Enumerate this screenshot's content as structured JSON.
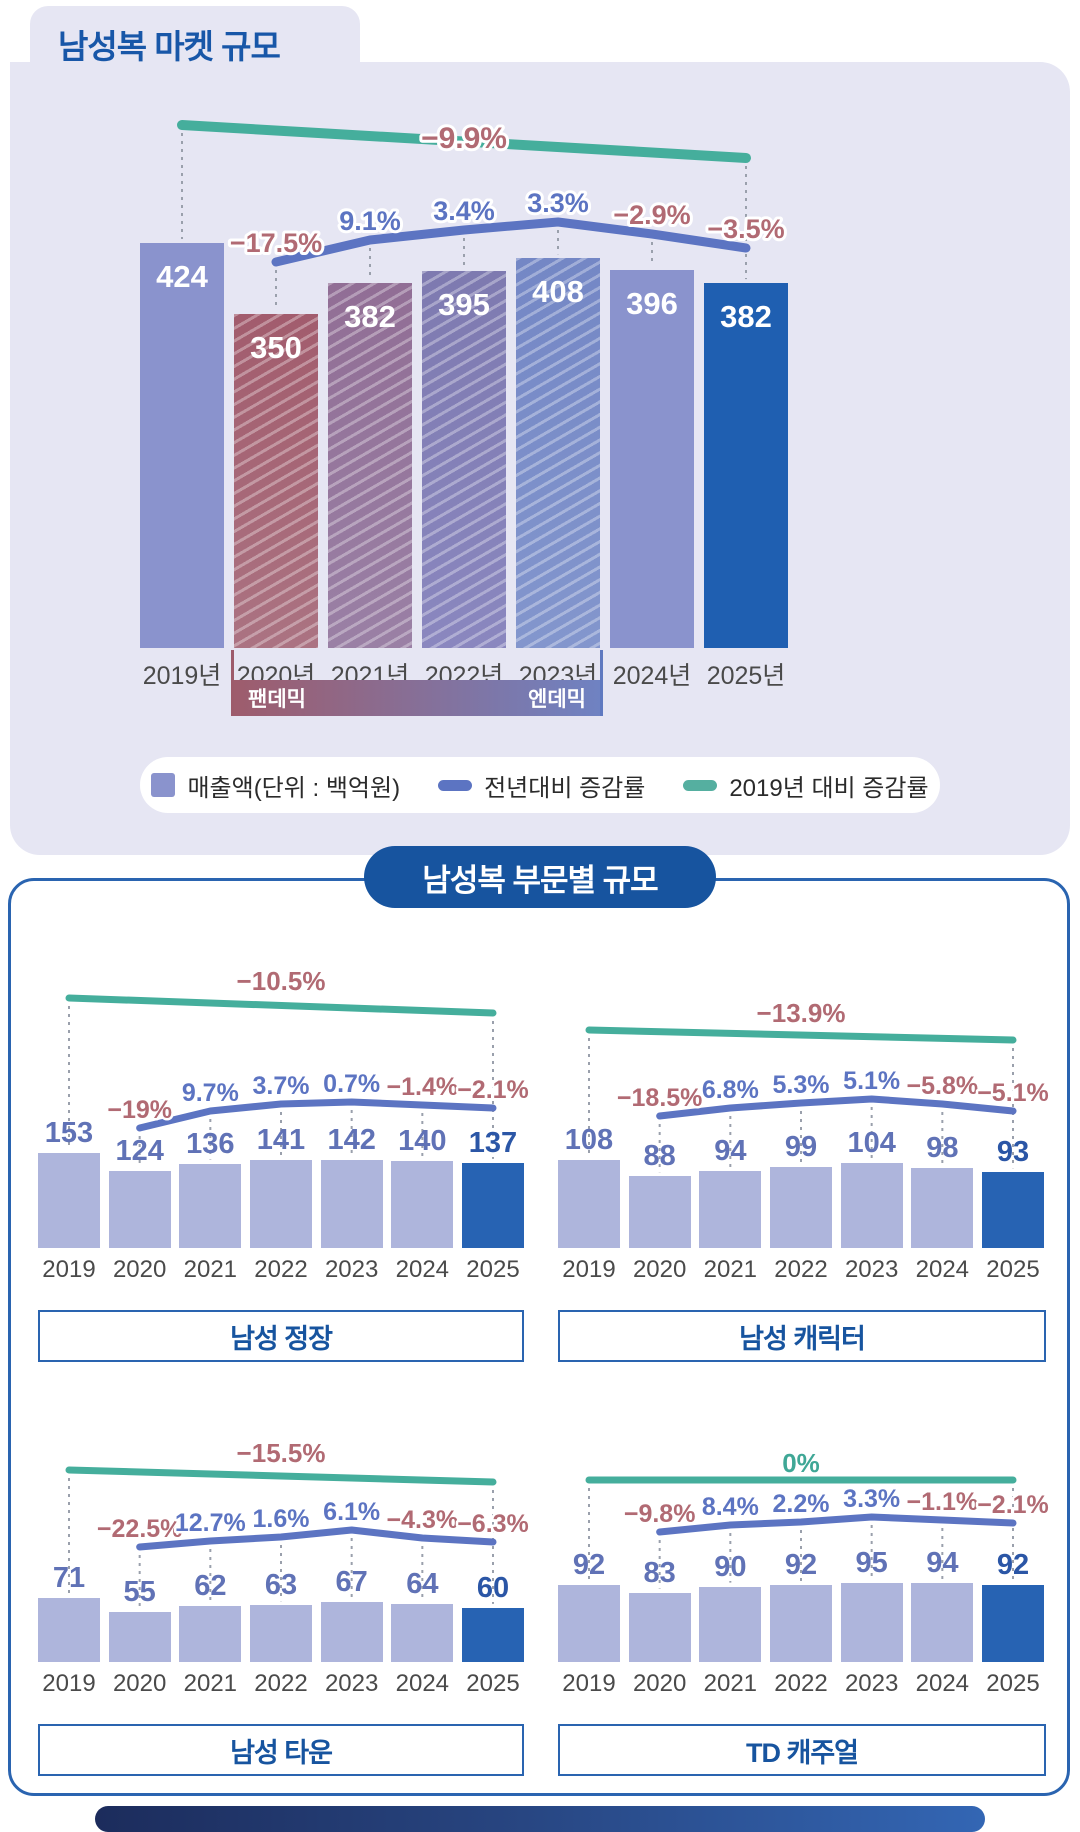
{
  "top_section": {
    "title": "남성복 마켓 규모",
    "band": {
      "left": "팬데믹",
      "right": "엔데믹"
    },
    "legend": [
      {
        "swatch": "bar-swatch",
        "color": "#8A93CD",
        "label": "매출액(단위 : 백억원)"
      },
      {
        "swatch": "yoy-line-swatch",
        "color": "#5C74C2",
        "label": "전년대비 증감률"
      },
      {
        "swatch": "vs2019-line-swatch",
        "color": "#55AFA0",
        "label": "2019년 대비 증감률"
      }
    ]
  },
  "bottom_section": {
    "title": "남성복 부문별 규모"
  },
  "chart_data": [
    {
      "id": "menswear-market-total",
      "type": "bar",
      "title": "남성복 마켓 규모",
      "unit": "백억원",
      "categories": [
        "2019년",
        "2020년",
        "2021년",
        "2022년",
        "2023년",
        "2024년",
        "2025년"
      ],
      "values": [
        424,
        350,
        382,
        395,
        408,
        396,
        382
      ],
      "yoy_pct": [
        null,
        -17.5,
        9.1,
        3.4,
        3.3,
        -2.9,
        -3.5
      ],
      "yoy_labels": [
        "−17.5%",
        "9.1%",
        "3.4%",
        "3.3%",
        "−2.9%",
        "−3.5%"
      ],
      "vs2019_pct": -9.9,
      "vs2019_label": "−9.9%",
      "annotations": [
        "팬데믹",
        "엔데믹"
      ],
      "grid": false,
      "legend_position": "bottom"
    },
    {
      "id": "men-suits",
      "type": "bar",
      "title": "남성 정장",
      "categories": [
        "2019",
        "2020",
        "2021",
        "2022",
        "2023",
        "2024",
        "2025"
      ],
      "values": [
        153,
        124,
        136,
        141,
        142,
        140,
        137
      ],
      "yoy_pct": [
        null,
        -19,
        9.7,
        3.7,
        0.7,
        -1.4,
        -2.1
      ],
      "yoy_labels": [
        "−19%",
        "9.7%",
        "3.7%",
        "0.7%",
        "−1.4%",
        "−2.1%"
      ],
      "vs2019_pct": -10.5,
      "vs2019_label": "−10.5%",
      "grid": false
    },
    {
      "id": "men-character",
      "type": "bar",
      "title": "남성 캐릭터",
      "categories": [
        "2019",
        "2020",
        "2021",
        "2022",
        "2023",
        "2024",
        "2025"
      ],
      "values": [
        108,
        88,
        94,
        99,
        104,
        98,
        93
      ],
      "yoy_pct": [
        null,
        -18.5,
        6.8,
        5.3,
        5.1,
        -5.8,
        -5.1
      ],
      "yoy_labels": [
        "−18.5%",
        "6.8%",
        "5.3%",
        "5.1%",
        "−5.8%",
        "−5.1%"
      ],
      "vs2019_pct": -13.9,
      "vs2019_label": "−13.9%",
      "grid": false
    },
    {
      "id": "men-town",
      "type": "bar",
      "title": "남성 타운",
      "categories": [
        "2019",
        "2020",
        "2021",
        "2022",
        "2023",
        "2024",
        "2025"
      ],
      "values": [
        71,
        55,
        62,
        63,
        67,
        64,
        60
      ],
      "yoy_pct": [
        null,
        -22.5,
        12.7,
        1.6,
        6.1,
        -4.3,
        -6.3
      ],
      "yoy_labels": [
        "−22.5%",
        "12.7%",
        "1.6%",
        "6.1%",
        "−4.3%",
        "−6.3%"
      ],
      "vs2019_pct": -15.5,
      "vs2019_label": "−15.5%",
      "grid": false
    },
    {
      "id": "td-casual",
      "type": "bar",
      "title": "TD 캐주얼",
      "categories": [
        "2019",
        "2020",
        "2021",
        "2022",
        "2023",
        "2024",
        "2025"
      ],
      "values": [
        92,
        83,
        90,
        92,
        95,
        94,
        92
      ],
      "yoy_pct": [
        null,
        -9.8,
        8.4,
        2.2,
        3.3,
        -1.1,
        -2.1
      ],
      "yoy_labels": [
        "−9.8%",
        "8.4%",
        "2.2%",
        "3.3%",
        "−1.1%",
        "−2.1%"
      ],
      "vs2019_pct": 0,
      "vs2019_label": "0%",
      "grid": false
    }
  ]
}
